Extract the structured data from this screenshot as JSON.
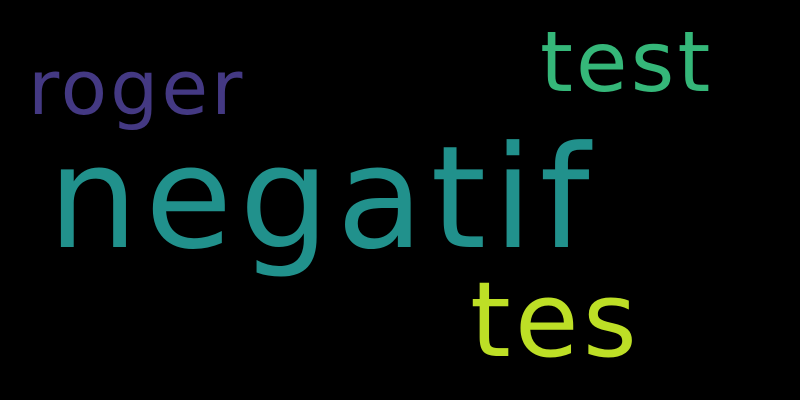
{
  "background_color": "#000000",
  "words": [
    {
      "text": "negatif",
      "color": "#21918c"
    },
    {
      "text": "tes",
      "color": "#bddf26"
    },
    {
      "text": "test",
      "color": "#35b779"
    },
    {
      "text": "roger",
      "color": "#443983"
    }
  ]
}
